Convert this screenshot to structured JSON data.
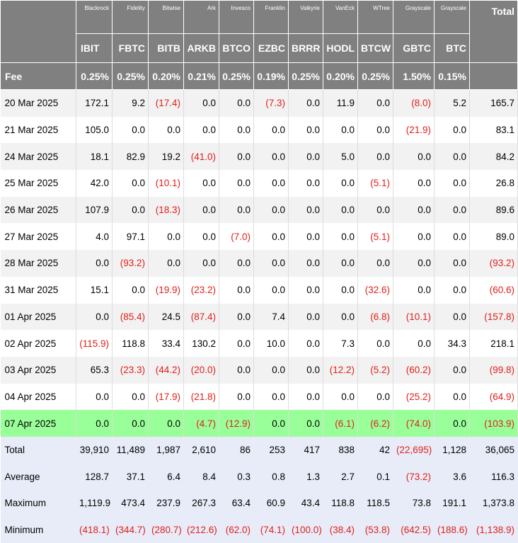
{
  "header": {
    "total_label": "Total",
    "fee_label": "Fee",
    "issuers": [
      "Blackrock",
      "Fidelity",
      "Bitwise",
      "Ark",
      "Invesco",
      "Franklin",
      "Valkyrie",
      "VanEck",
      "WTree",
      "Grayscale",
      "Grayscale"
    ],
    "tickers": [
      "IBIT",
      "FBTC",
      "BITB",
      "ARKB",
      "BTCO",
      "EZBC",
      "BRRR",
      "HODL",
      "BTCW",
      "GBTC",
      "BTC"
    ],
    "fees": [
      "0.25%",
      "0.25%",
      "0.20%",
      "0.21%",
      "0.25%",
      "0.19%",
      "0.25%",
      "0.20%",
      "0.25%",
      "1.50%",
      "0.15%"
    ]
  },
  "rows": [
    {
      "date": "20 Mar 2025",
      "values": [
        "172.1",
        "9.2",
        "(17.4)",
        "0.0",
        "0.0",
        "(7.3)",
        "0.0",
        "11.9",
        "0.0",
        "(8.0)",
        "5.2",
        "165.7"
      ]
    },
    {
      "date": "21 Mar 2025",
      "values": [
        "105.0",
        "0.0",
        "0.0",
        "0.0",
        "0.0",
        "0.0",
        "0.0",
        "0.0",
        "0.0",
        "(21.9)",
        "0.0",
        "83.1"
      ]
    },
    {
      "date": "24 Mar 2025",
      "values": [
        "18.1",
        "82.9",
        "19.2",
        "(41.0)",
        "0.0",
        "0.0",
        "0.0",
        "5.0",
        "0.0",
        "0.0",
        "0.0",
        "84.2"
      ]
    },
    {
      "date": "25 Mar 2025",
      "values": [
        "42.0",
        "0.0",
        "(10.1)",
        "0.0",
        "0.0",
        "0.0",
        "0.0",
        "0.0",
        "(5.1)",
        "0.0",
        "0.0",
        "26.8"
      ]
    },
    {
      "date": "26 Mar 2025",
      "values": [
        "107.9",
        "0.0",
        "(18.3)",
        "0.0",
        "0.0",
        "0.0",
        "0.0",
        "0.0",
        "0.0",
        "0.0",
        "0.0",
        "89.6"
      ]
    },
    {
      "date": "27 Mar 2025",
      "values": [
        "4.0",
        "97.1",
        "0.0",
        "0.0",
        "(7.0)",
        "0.0",
        "0.0",
        "0.0",
        "(5.1)",
        "0.0",
        "0.0",
        "89.0"
      ]
    },
    {
      "date": "28 Mar 2025",
      "values": [
        "0.0",
        "(93.2)",
        "0.0",
        "0.0",
        "0.0",
        "0.0",
        "0.0",
        "0.0",
        "0.0",
        "0.0",
        "0.0",
        "(93.2)"
      ]
    },
    {
      "date": "31 Mar 2025",
      "values": [
        "15.1",
        "0.0",
        "(19.9)",
        "(23.2)",
        "0.0",
        "0.0",
        "0.0",
        "0.0",
        "(32.6)",
        "0.0",
        "0.0",
        "(60.6)"
      ]
    },
    {
      "date": "01 Apr 2025",
      "values": [
        "0.0",
        "(85.4)",
        "24.5",
        "(87.4)",
        "0.0",
        "7.4",
        "0.0",
        "0.0",
        "(6.8)",
        "(10.1)",
        "0.0",
        "(157.8)"
      ]
    },
    {
      "date": "02 Apr 2025",
      "values": [
        "(115.9)",
        "118.8",
        "33.4",
        "130.2",
        "0.0",
        "10.0",
        "0.0",
        "7.3",
        "0.0",
        "0.0",
        "34.3",
        "218.1"
      ]
    },
    {
      "date": "03 Apr 2025",
      "values": [
        "65.3",
        "(23.3)",
        "(44.2)",
        "(20.0)",
        "0.0",
        "0.0",
        "0.0",
        "(12.2)",
        "(5.2)",
        "(60.2)",
        "0.0",
        "(99.8)"
      ]
    },
    {
      "date": "04 Apr 2025",
      "values": [
        "0.0",
        "0.0",
        "(17.9)",
        "(21.8)",
        "0.0",
        "0.0",
        "0.0",
        "0.0",
        "0.0",
        "(25.2)",
        "0.0",
        "(64.9)"
      ]
    },
    {
      "date": "07 Apr 2025",
      "values": [
        "0.0",
        "0.0",
        "0.0",
        "(4.7)",
        "(12.9)",
        "0.0",
        "0.0",
        "(6.1)",
        "(6.2)",
        "(74.0)",
        "0.0",
        "(103.9)"
      ],
      "background": "#99ff99"
    }
  ],
  "summary": [
    {
      "label": "Total",
      "values": [
        "39,910",
        "11,489",
        "1,987",
        "2,610",
        "86",
        "253",
        "417",
        "838",
        "42",
        "(22,695)",
        "1,128",
        "36,065"
      ]
    },
    {
      "label": "Average",
      "values": [
        "128.7",
        "37.1",
        "6.4",
        "8.4",
        "0.3",
        "0.8",
        "1.3",
        "2.7",
        "0.1",
        "(73.2)",
        "3.6",
        "116.3"
      ]
    },
    {
      "label": "Maximum",
      "values": [
        "1,119.9",
        "473.4",
        "237.9",
        "267.3",
        "63.4",
        "60.9",
        "43.4",
        "118.8",
        "118.5",
        "73.8",
        "191.1",
        "1,373.8"
      ]
    },
    {
      "label": "Minimum",
      "values": [
        "(418.1)",
        "(344.7)",
        "(280.7)",
        "(212.6)",
        "(62.0)",
        "(74.1)",
        "(100.0)",
        "(38.4)",
        "(53.8)",
        "(642.5)",
        "(188.6)",
        "(1,138.9)"
      ]
    }
  ]
}
